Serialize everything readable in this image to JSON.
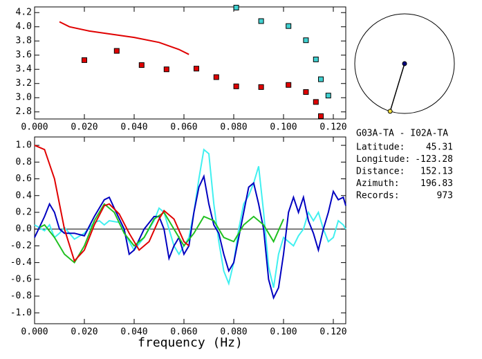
{
  "chart_data": [
    {
      "type": "scatter",
      "xlim": [
        0,
        0.125
      ],
      "ylim": [
        2.7,
        4.28
      ],
      "xticks": [
        {
          "value": 0,
          "label": "0.000"
        },
        {
          "value": 0.02,
          "label": "0.020"
        },
        {
          "value": 0.04,
          "label": "0.040"
        },
        {
          "value": 0.06,
          "label": "0.060"
        },
        {
          "value": 0.08,
          "label": "0.080"
        },
        {
          "value": 0.1,
          "label": "0.100"
        },
        {
          "value": 0.12,
          "label": "0.120"
        }
      ],
      "yticks": [
        {
          "value": 2.8,
          "label": "2.8"
        },
        {
          "value": 3.0,
          "label": "3.0"
        },
        {
          "value": 3.2,
          "label": "3.2"
        },
        {
          "value": 3.4,
          "label": "3.4"
        },
        {
          "value": 3.6,
          "label": "3.6"
        },
        {
          "value": 3.8,
          "label": "3.8"
        },
        {
          "value": 4.0,
          "label": "4.0"
        },
        {
          "value": 4.2,
          "label": "4.2"
        }
      ],
      "series": [
        {
          "mode": "line",
          "color": "#e00000",
          "x": [
            0.01,
            0.014,
            0.022,
            0.03,
            0.04,
            0.05,
            0.058,
            0.062
          ],
          "values": [
            4.07,
            4.0,
            3.94,
            3.9,
            3.85,
            3.78,
            3.68,
            3.61
          ]
        },
        {
          "mode": "markers",
          "color": "#e00000",
          "x": [
            0.02,
            0.033,
            0.043,
            0.053,
            0.065,
            0.073,
            0.081,
            0.091,
            0.102,
            0.109,
            0.113,
            0.115
          ],
          "values": [
            3.53,
            3.66,
            3.46,
            3.4,
            3.41,
            3.29,
            3.16,
            3.15,
            3.18,
            3.08,
            2.94,
            2.74
          ]
        },
        {
          "mode": "markers",
          "color": "#40d0d0",
          "x": [
            0.081,
            0.091,
            0.102,
            0.109,
            0.113,
            0.115,
            0.118
          ],
          "values": [
            4.27,
            4.08,
            4.01,
            3.81,
            3.54,
            3.26,
            3.03
          ]
        }
      ]
    },
    {
      "type": "line",
      "x_label": "frequency (Hz)",
      "xlim": [
        0,
        0.125
      ],
      "ylim": [
        -1.13,
        1.1
      ],
      "reference_line": 0,
      "xticks": [
        {
          "value": 0,
          "label": "0.000"
        },
        {
          "value": 0.02,
          "label": "0.020"
        },
        {
          "value": 0.04,
          "label": "0.040"
        },
        {
          "value": 0.06,
          "label": "0.060"
        },
        {
          "value": 0.08,
          "label": "0.080"
        },
        {
          "value": 0.1,
          "label": "0.100"
        },
        {
          "value": 0.12,
          "label": "0.120"
        }
      ],
      "yticks": [
        {
          "value": -1.0,
          "label": "-1.0"
        },
        {
          "value": -0.8,
          "label": "-0.8"
        },
        {
          "value": -0.6,
          "label": "-0.6"
        },
        {
          "value": -0.4,
          "label": "-0.4"
        },
        {
          "value": -0.2,
          "label": "-0.2"
        },
        {
          "value": 0.0,
          "label": "0.0"
        },
        {
          "value": 0.2,
          "label": "0.2"
        },
        {
          "value": 0.4,
          "label": "0.4"
        },
        {
          "value": 0.6,
          "label": "0.6"
        },
        {
          "value": 0.8,
          "label": "0.8"
        },
        {
          "value": 1.0,
          "label": "1.0"
        }
      ],
      "series": [
        {
          "color": "#40f0f0",
          "x": [
            0,
            0.004,
            0.006,
            0.008,
            0.01,
            0.012,
            0.016,
            0.02,
            0.024,
            0.026,
            0.028,
            0.03,
            0.034,
            0.038,
            0.04,
            0.044,
            0.048,
            0.05,
            0.052,
            0.054,
            0.056,
            0.058,
            0.06,
            0.062,
            0.064,
            0.066,
            0.068,
            0.07,
            0.072,
            0.074,
            0.076,
            0.078,
            0.08,
            0.082,
            0.084,
            0.086,
            0.088,
            0.09,
            0.092,
            0.094,
            0.096,
            0.098,
            0.1,
            0.102,
            0.104,
            0.106,
            0.108,
            0.11,
            0.112,
            0.114,
            0.116,
            0.118,
            0.12,
            0.122,
            0.124,
            0.125
          ],
          "values": [
            0.05,
            -0.02,
            0.05,
            -0.1,
            -0.05,
            0.02,
            -0.12,
            -0.05,
            0.08,
            0.1,
            0.05,
            0.1,
            0.08,
            -0.15,
            -0.25,
            -0.1,
            0.1,
            0.25,
            0.2,
            0.0,
            -0.2,
            -0.3,
            -0.2,
            -0.1,
            0.2,
            0.6,
            0.95,
            0.9,
            0.3,
            -0.15,
            -0.5,
            -0.65,
            -0.4,
            0.0,
            0.3,
            0.4,
            0.55,
            0.75,
            0.2,
            -0.45,
            -0.7,
            -0.3,
            -0.1,
            -0.15,
            -0.2,
            -0.08,
            0.0,
            0.2,
            0.1,
            0.2,
            0.0,
            -0.15,
            -0.1,
            0.1,
            0.05,
            0.0
          ]
        },
        {
          "color": "#0000c0",
          "x": [
            0,
            0.004,
            0.006,
            0.008,
            0.01,
            0.012,
            0.016,
            0.02,
            0.024,
            0.028,
            0.03,
            0.032,
            0.036,
            0.038,
            0.04,
            0.044,
            0.048,
            0.05,
            0.052,
            0.054,
            0.056,
            0.058,
            0.06,
            0.062,
            0.064,
            0.066,
            0.068,
            0.07,
            0.072,
            0.074,
            0.076,
            0.078,
            0.08,
            0.082,
            0.084,
            0.086,
            0.088,
            0.09,
            0.092,
            0.094,
            0.096,
            0.098,
            0.1,
            0.102,
            0.104,
            0.106,
            0.108,
            0.11,
            0.112,
            0.114,
            0.116,
            0.118,
            0.12,
            0.122,
            0.124,
            0.125
          ],
          "values": [
            -0.1,
            0.15,
            0.3,
            0.2,
            0.0,
            -0.05,
            -0.05,
            -0.08,
            0.15,
            0.35,
            0.38,
            0.25,
            0.0,
            -0.3,
            -0.25,
            0.0,
            0.15,
            0.15,
            0.0,
            -0.35,
            -0.2,
            -0.1,
            -0.3,
            -0.2,
            0.2,
            0.5,
            0.63,
            0.3,
            0.05,
            -0.05,
            -0.3,
            -0.5,
            -0.4,
            -0.1,
            0.2,
            0.5,
            0.55,
            0.3,
            0.0,
            -0.6,
            -0.82,
            -0.7,
            -0.3,
            0.2,
            0.38,
            0.2,
            0.38,
            0.1,
            -0.05,
            -0.25,
            0.0,
            0.2,
            0.45,
            0.35,
            0.38,
            0.28
          ]
        },
        {
          "color": "#20c020",
          "x": [
            0.002,
            0.004,
            0.008,
            0.012,
            0.016,
            0.02,
            0.024,
            0.028,
            0.032,
            0.036,
            0.04,
            0.044,
            0.048,
            0.052,
            0.056,
            0.06,
            0.064,
            0.068,
            0.072,
            0.076,
            0.08,
            0.084,
            0.088,
            0.092,
            0.096,
            0.1
          ],
          "values": [
            0.02,
            0.05,
            -0.1,
            -0.3,
            -0.4,
            -0.2,
            0.1,
            0.3,
            0.2,
            -0.05,
            -0.2,
            -0.1,
            0.12,
            0.2,
            0.0,
            -0.2,
            -0.05,
            0.15,
            0.1,
            -0.1,
            -0.15,
            0.05,
            0.15,
            0.05,
            -0.15,
            0.12
          ]
        },
        {
          "color": "#e00000",
          "x": [
            0,
            0.004,
            0.008,
            0.012,
            0.016,
            0.02,
            0.024,
            0.028,
            0.03,
            0.034,
            0.038,
            0.042,
            0.046,
            0.05,
            0.052,
            0.056,
            0.06,
            0.062
          ],
          "values": [
            1.0,
            0.95,
            0.6,
            0.0,
            -0.38,
            -0.25,
            0.05,
            0.28,
            0.3,
            0.18,
            -0.05,
            -0.25,
            -0.15,
            0.12,
            0.22,
            0.12,
            -0.15,
            -0.2
          ]
        }
      ]
    }
  ],
  "station_pair": "G03A-TA  -  I02A-TA",
  "info": [
    {
      "label": "Latitude:",
      "value": 45.31
    },
    {
      "label": "Longitude:",
      "value": -123.28
    },
    {
      "label": "Distance:",
      "value": 152.13
    },
    {
      "label": "Azimuth:",
      "value": 196.83
    },
    {
      "label": "Records:",
      "value": 973
    }
  ]
}
